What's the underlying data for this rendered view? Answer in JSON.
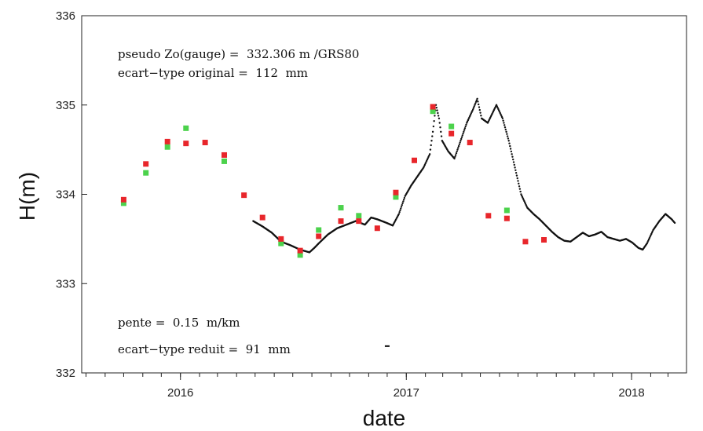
{
  "chart_data": {
    "type": "scatter",
    "xlabel": "date",
    "ylabel": "H(m)",
    "ylim": [
      332,
      336
    ],
    "xlim": [
      "2015-07-25",
      "2018-03-31"
    ],
    "y_ticks": [
      332,
      333,
      334,
      335,
      336
    ],
    "x_ticks": [
      {
        "date": "2016-01-01",
        "label": "2016"
      },
      {
        "date": "2017-01-01",
        "label": "2017"
      },
      {
        "date": "2018-01-01",
        "label": "2018"
      }
    ],
    "grid": false,
    "annotations": [
      "pseudo Zo(gauge) =  332.306 m /GRS80",
      "ecart−type original =  112  mm",
      "pente =  0.15  m/km",
      "ecart−type reduit =  91  mm"
    ],
    "series": [
      {
        "marker": "square",
        "color": "#e8262b",
        "points": [
          [
            "2015-10-01",
            333.94
          ],
          [
            "2015-11-06",
            334.34
          ],
          [
            "2015-12-11",
            334.59
          ],
          [
            "2016-01-10",
            334.57
          ],
          [
            "2016-02-10",
            334.58
          ],
          [
            "2016-03-12",
            334.44
          ],
          [
            "2016-04-13",
            333.99
          ],
          [
            "2016-05-13",
            333.74
          ],
          [
            "2016-06-12",
            333.5
          ],
          [
            "2016-07-13",
            333.37
          ],
          [
            "2016-08-12",
            333.53
          ],
          [
            "2016-09-17",
            333.7
          ],
          [
            "2016-10-16",
            333.7
          ],
          [
            "2016-11-15",
            333.62
          ],
          [
            "2016-12-15",
            334.02
          ],
          [
            "2017-01-14",
            334.38
          ],
          [
            "2017-02-13",
            334.98
          ],
          [
            "2017-03-15",
            334.68
          ],
          [
            "2017-04-14",
            334.58
          ],
          [
            "2017-05-14",
            333.76
          ],
          [
            "2017-06-13",
            333.73
          ],
          [
            "2017-07-13",
            333.47
          ],
          [
            "2017-08-12",
            333.49
          ]
        ]
      },
      {
        "marker": "square",
        "color": "#4cd24c",
        "points": [
          [
            "2015-10-01",
            333.9
          ],
          [
            "2015-11-06",
            334.24
          ],
          [
            "2015-12-11",
            334.53
          ],
          [
            "2016-01-10",
            334.74
          ],
          [
            "2016-03-12",
            334.37
          ],
          [
            "2016-06-12",
            333.45
          ],
          [
            "2016-07-13",
            333.32
          ],
          [
            "2016-08-12",
            333.6
          ],
          [
            "2016-09-17",
            333.85
          ],
          [
            "2016-10-16",
            333.76
          ],
          [
            "2016-12-15",
            333.97
          ],
          [
            "2017-02-13",
            334.93
          ],
          [
            "2017-03-15",
            334.76
          ],
          [
            "2017-06-13",
            333.82
          ]
        ]
      },
      {
        "marker": "dot",
        "color": "#111111",
        "line": [
          [
            "2016-04-28",
            333.7
          ],
          [
            "2016-05-13",
            333.64
          ],
          [
            "2016-05-28",
            333.57
          ],
          [
            "2016-06-12",
            333.47
          ],
          [
            "2016-06-27",
            333.43
          ],
          [
            "2016-07-13",
            333.38
          ],
          [
            "2016-07-28",
            333.35
          ],
          [
            "2016-08-05",
            333.4
          ],
          [
            "2016-08-12",
            333.45
          ],
          [
            "2016-08-27",
            333.55
          ],
          [
            "2016-09-11",
            333.62
          ],
          [
            "2016-09-26",
            333.66
          ],
          [
            "2016-10-11",
            333.7
          ],
          [
            "2016-10-26",
            333.66
          ],
          [
            "2016-11-05",
            333.74
          ],
          [
            "2016-11-15",
            333.72
          ],
          [
            "2016-11-30",
            333.68
          ],
          [
            "2016-12-10",
            333.65
          ],
          [
            "2016-12-20",
            333.78
          ],
          [
            "2016-12-30",
            333.98
          ],
          [
            "2017-01-09",
            334.1
          ],
          [
            "2017-01-19",
            334.2
          ],
          [
            "2017-01-29",
            334.3
          ],
          [
            "2017-02-08",
            334.45
          ],
          [
            "2017-02-13",
            334.7
          ],
          [
            "2017-02-18",
            335.0
          ],
          [
            "2017-02-23",
            334.85
          ],
          [
            "2017-02-28",
            334.6
          ],
          [
            "2017-03-10",
            334.48
          ],
          [
            "2017-03-20",
            334.4
          ],
          [
            "2017-03-30",
            334.6
          ],
          [
            "2017-04-09",
            334.8
          ],
          [
            "2017-04-19",
            334.95
          ],
          [
            "2017-04-26",
            335.07
          ],
          [
            "2017-05-03",
            334.85
          ],
          [
            "2017-05-13",
            334.8
          ],
          [
            "2017-05-20",
            334.9
          ],
          [
            "2017-05-27",
            335.0
          ],
          [
            "2017-06-06",
            334.85
          ],
          [
            "2017-06-16",
            334.6
          ],
          [
            "2017-06-26",
            334.3
          ],
          [
            "2017-07-06",
            334.0
          ],
          [
            "2017-07-16",
            333.85
          ],
          [
            "2017-07-26",
            333.78
          ],
          [
            "2017-08-05",
            333.72
          ],
          [
            "2017-08-15",
            333.65
          ],
          [
            "2017-08-25",
            333.58
          ],
          [
            "2017-09-04",
            333.52
          ],
          [
            "2017-09-14",
            333.48
          ],
          [
            "2017-09-24",
            333.47
          ],
          [
            "2017-10-04",
            333.52
          ],
          [
            "2017-10-14",
            333.57
          ],
          [
            "2017-10-24",
            333.53
          ],
          [
            "2017-11-03",
            333.55
          ],
          [
            "2017-11-13",
            333.58
          ],
          [
            "2017-11-23",
            333.52
          ],
          [
            "2017-12-03",
            333.5
          ],
          [
            "2017-12-13",
            333.48
          ],
          [
            "2017-12-23",
            333.5
          ],
          [
            "2018-01-02",
            333.46
          ],
          [
            "2018-01-12",
            333.4
          ],
          [
            "2018-01-19",
            333.38
          ],
          [
            "2018-01-26",
            333.45
          ],
          [
            "2018-02-05",
            333.6
          ],
          [
            "2018-02-15",
            333.7
          ],
          [
            "2018-02-25",
            333.78
          ],
          [
            "2018-03-07",
            333.72
          ],
          [
            "2018-03-12",
            333.68
          ]
        ],
        "outlier": [
          "2016-12-01",
          332.3
        ]
      }
    ]
  }
}
